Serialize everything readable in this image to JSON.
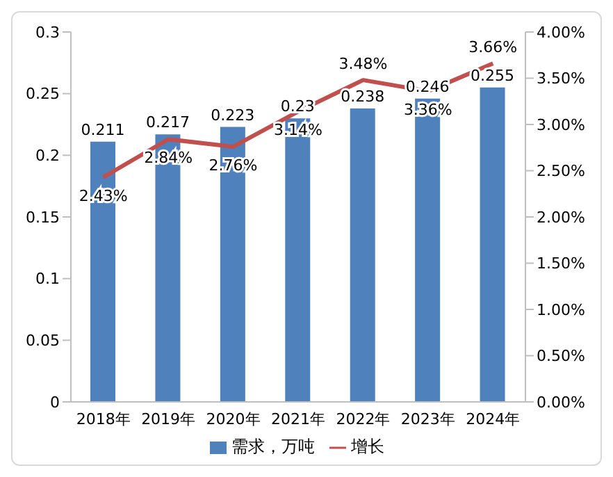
{
  "chart_data": {
    "type": "bar",
    "categories": [
      "2018年",
      "2019年",
      "2020年",
      "2021年",
      "2022年",
      "2023年",
      "2024年"
    ],
    "series": [
      {
        "name": "需求，万吨",
        "color": "#4f81bd",
        "values": [
          0.211,
          0.217,
          0.223,
          0.23,
          0.238,
          0.246,
          0.255
        ],
        "value_labels": [
          "0.211",
          "0.217",
          "0.223",
          "0.23",
          "0.238",
          "0.246",
          "0.255"
        ]
      },
      {
        "name": "增长",
        "type": "line",
        "axis": "y2",
        "color": "#c0504d",
        "values": [
          2.43,
          2.84,
          2.76,
          3.14,
          3.48,
          3.36,
          3.66
        ],
        "value_labels": [
          "2.43%",
          "2.84%",
          "2.76%",
          "3.14%",
          "3.48%",
          "3.36%",
          "3.66%"
        ]
      }
    ],
    "ylim": [
      0,
      0.3
    ],
    "yticks": [
      0,
      0.05,
      0.1,
      0.15,
      0.2,
      0.25,
      0.3
    ],
    "y2lim": [
      0,
      4
    ],
    "y2ticks": [
      {
        "value": 0,
        "label": "0.00%"
      },
      {
        "value": 0.5,
        "label": "0.50%"
      },
      {
        "value": 1,
        "label": "1.00%"
      },
      {
        "value": 1.5,
        "label": "1.50%"
      },
      {
        "value": 2,
        "label": "2.00%"
      },
      {
        "value": 2.5,
        "label": "2.50%"
      },
      {
        "value": 3,
        "label": "3.00%"
      },
      {
        "value": 3.5,
        "label": "3.50%"
      },
      {
        "value": 4,
        "label": "4.00%"
      }
    ],
    "legend": "bottom",
    "marker": "none",
    "line_style": "solid"
  }
}
